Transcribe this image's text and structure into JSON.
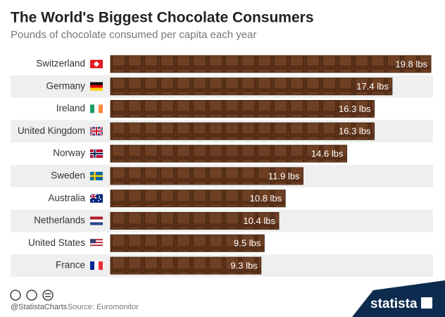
{
  "chart_data": {
    "type": "bar",
    "title": "The World's Biggest Chocolate Consumers",
    "subtitle": "Pounds of chocolate consumed per capita each year",
    "categories": [
      "Switzerland",
      "Germany",
      "Ireland",
      "United Kingdom",
      "Norway",
      "Sweden",
      "Australia",
      "Netherlands",
      "United States",
      "France"
    ],
    "values": [
      19.8,
      17.4,
      16.3,
      16.3,
      14.6,
      11.9,
      10.8,
      10.4,
      9.5,
      9.3
    ],
    "value_labels": [
      "19.8 lbs",
      "17.4 lbs",
      "16.3 lbs",
      "16.3 lbs",
      "14.6 lbs",
      "11.9 lbs",
      "10.8 lbs",
      "10.4 lbs",
      "9.5 lbs",
      "9.3 lbs"
    ],
    "color": "#6b3d22",
    "handle": "@StatistaCharts",
    "source": "Source: Euromonitor",
    "brand": "statista"
  }
}
